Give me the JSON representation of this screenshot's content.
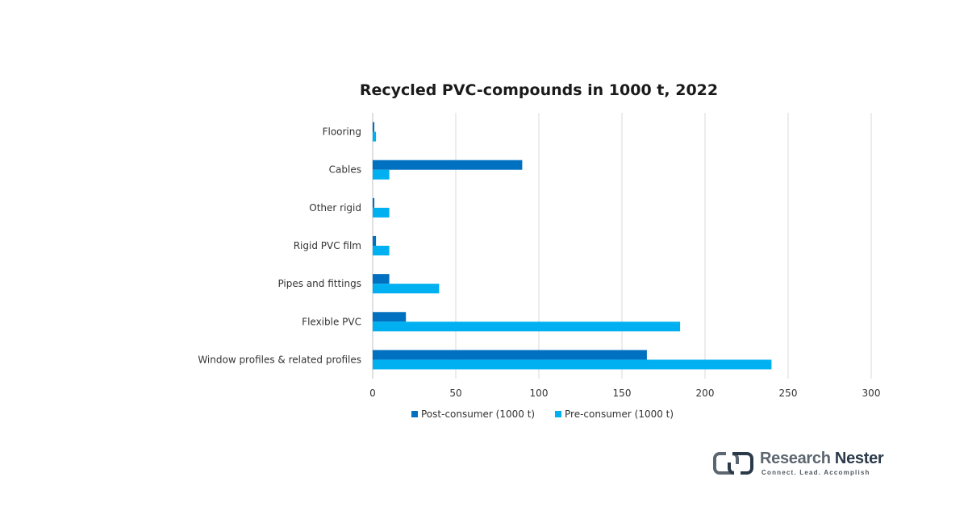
{
  "chart_data": {
    "type": "bar",
    "orientation": "horizontal",
    "title": "Recycled PVC-compounds in 1000 t, 2022",
    "categories": [
      "Flooring",
      "Cables",
      "Other rigid",
      "Rigid PVC film",
      "Pipes and fittings",
      "Flexible PVC",
      "Window profiles & related profiles"
    ],
    "series": [
      {
        "name": "Post-consumer (1000 t)",
        "color": "#0070c0",
        "values": [
          1,
          90,
          1,
          2,
          10,
          20,
          165
        ]
      },
      {
        "name": "Pre-consumer (1000 t)",
        "color": "#00b0f0",
        "values": [
          2,
          10,
          10,
          10,
          40,
          185,
          240
        ]
      }
    ],
    "xlim": [
      0,
      300
    ],
    "xticks": [
      0,
      50,
      100,
      150,
      200,
      250,
      300
    ],
    "xlabel": "",
    "ylabel": "",
    "grid": true,
    "legend_position": "bottom"
  },
  "logo": {
    "name_part1": "Research ",
    "name_part2": "Nester",
    "tagline": "Connect. Lead. Accomplish"
  }
}
